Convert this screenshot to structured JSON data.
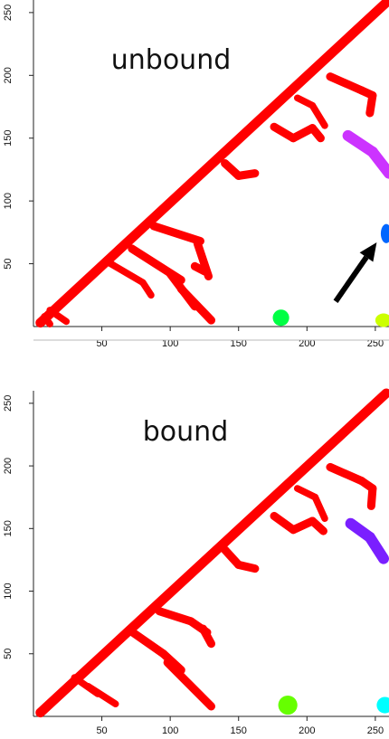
{
  "chart_data": [
    {
      "type": "heatmap",
      "title": "unbound",
      "xlabel": "",
      "ylabel": "",
      "xlim": [
        0,
        260
      ],
      "ylim": [
        0,
        260
      ],
      "xticks": [
        50,
        100,
        150,
        200,
        250
      ],
      "yticks": [
        50,
        100,
        150,
        200,
        250
      ],
      "background": "#ffffff",
      "regions": [
        {
          "name": "main-diagonal",
          "color": "#ff0000",
          "segments": [
            [
              5,
              3,
              258,
              258
            ]
          ],
          "thickness": 7
        },
        {
          "name": "branch-1",
          "color": "#ff0000",
          "segments": [
            [
              12,
              13,
              24,
              4
            ],
            [
              8,
              8,
              12,
              2
            ]
          ],
          "thickness": 5
        },
        {
          "name": "branch-2",
          "color": "#ff0000",
          "segments": [
            [
              55,
              51,
              80,
              35
            ],
            [
              80,
              35,
              86,
              25
            ]
          ],
          "thickness": 5
        },
        {
          "name": "branch-3",
          "color": "#ff0000",
          "segments": [
            [
              72,
              62,
              108,
              37
            ],
            [
              100,
              42,
              118,
              16
            ],
            [
              108,
              30,
              130,
              5
            ]
          ],
          "thickness": 6
        },
        {
          "name": "branch-4",
          "color": "#ff0000",
          "segments": [
            [
              88,
              80,
              122,
              68
            ],
            [
              120,
              66,
              128,
              40
            ],
            [
              118,
              48,
              125,
              44
            ]
          ],
          "thickness": 6
        },
        {
          "name": "branch-5",
          "color": "#ff0000",
          "segments": [
            [
              140,
              130,
              150,
              120
            ],
            [
              150,
              120,
              162,
              122
            ]
          ],
          "thickness": 6
        },
        {
          "name": "branch-6",
          "color": "#ff0000",
          "segments": [
            [
              176,
              159,
              190,
              150
            ],
            [
              190,
              150,
              204,
              158
            ],
            [
              204,
              158,
              210,
              150
            ]
          ],
          "thickness": 6
        },
        {
          "name": "branch-7",
          "color": "#ff0000",
          "segments": [
            [
              193,
              182,
              204,
              176
            ],
            [
              204,
              176,
              213,
              160
            ]
          ],
          "thickness": 5
        },
        {
          "name": "branch-8",
          "color": "#ff0000",
          "segments": [
            [
              217,
              199,
              240,
              188
            ],
            [
              240,
              188,
              248,
              184
            ],
            [
              248,
              184,
              246,
              170
            ]
          ],
          "thickness": 6
        },
        {
          "name": "magenta-cluster",
          "color": "#cc33ff",
          "segments": [
            [
              230,
              152,
              248,
              139
            ],
            [
              248,
              139,
              260,
              122
            ]
          ],
          "thickness": 8
        },
        {
          "name": "blue-cluster",
          "color": "#0066ff",
          "blobs": [
            [
              258,
              74,
              4,
              7
            ]
          ]
        },
        {
          "name": "green-cluster",
          "color": "#00ff44",
          "blobs": [
            [
              181,
              7,
              6,
              6
            ]
          ]
        },
        {
          "name": "yellow-green-cluster",
          "color": "#ccff00",
          "blobs": [
            [
              256,
              5,
              6,
              5
            ]
          ]
        }
      ],
      "annotations": [
        {
          "type": "arrow",
          "color": "#000000",
          "from": [
            221,
            20
          ],
          "to": [
            251,
            67
          ]
        }
      ]
    },
    {
      "type": "heatmap",
      "title": "bound",
      "xlabel": "",
      "ylabel": "",
      "xlim": [
        0,
        260
      ],
      "ylim": [
        0,
        260
      ],
      "xticks": [
        50,
        100,
        150,
        200,
        250
      ],
      "yticks": [
        50,
        100,
        150,
        200,
        250
      ],
      "background": "#ffffff",
      "regions": [
        {
          "name": "main-diagonal",
          "color": "#ff0000",
          "segments": [
            [
              5,
              3,
              258,
              258
            ]
          ],
          "thickness": 7
        },
        {
          "name": "branch-1",
          "color": "#ff0000",
          "segments": [
            [
              30,
              31,
              47,
              18
            ],
            [
              40,
              24,
              60,
              10
            ]
          ],
          "thickness": 5
        },
        {
          "name": "branch-2",
          "color": "#ff0000",
          "segments": [
            [
              70,
              69,
              95,
              50
            ],
            [
              95,
              50,
              108,
              37
            ],
            [
              98,
              43,
              130,
              8
            ]
          ],
          "thickness": 6
        },
        {
          "name": "branch-3",
          "color": "#ff0000",
          "segments": [
            [
              92,
              84,
              115,
              76
            ],
            [
              115,
              76,
              127,
              67
            ],
            [
              124,
              70,
              130,
              58
            ]
          ],
          "thickness": 6
        },
        {
          "name": "branch-4",
          "color": "#ff0000",
          "segments": [
            [
              140,
              133,
              150,
              121
            ],
            [
              150,
              121,
              162,
              118
            ]
          ],
          "thickness": 6
        },
        {
          "name": "branch-5",
          "color": "#ff0000",
          "segments": [
            [
              176,
              160,
              190,
              149
            ],
            [
              190,
              149,
              204,
              156
            ],
            [
              204,
              156,
              212,
              148
            ]
          ],
          "thickness": 6
        },
        {
          "name": "branch-6",
          "color": "#ff0000",
          "segments": [
            [
              193,
              182,
              206,
              175
            ],
            [
              206,
              175,
              213,
              158
            ]
          ],
          "thickness": 5
        },
        {
          "name": "branch-7",
          "color": "#ff0000",
          "segments": [
            [
              217,
              199,
              240,
              188
            ],
            [
              240,
              188,
              248,
              182
            ],
            [
              248,
              182,
              247,
              168
            ]
          ],
          "thickness": 6
        },
        {
          "name": "purple-cluster",
          "color": "#7a1fff",
          "segments": [
            [
              232,
              154,
              246,
              143
            ],
            [
              246,
              143,
              256,
              126
            ]
          ],
          "thickness": 8
        },
        {
          "name": "green-cluster",
          "color": "#66ff00",
          "blobs": [
            [
              186,
              9,
              7,
              7
            ]
          ]
        },
        {
          "name": "cyan-cluster",
          "color": "#00ffff",
          "blobs": [
            [
              257,
              9,
              6,
              6
            ]
          ]
        }
      ],
      "annotations": []
    }
  ]
}
